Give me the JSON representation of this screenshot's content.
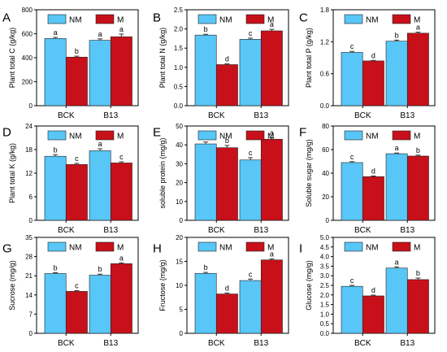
{
  "colors": {
    "NM": "#58C6F7",
    "M": "#C8101A",
    "axis": "#000000",
    "errorbar": "#333333"
  },
  "legend": {
    "nm_label": "NM",
    "m_label": "M"
  },
  "chart_data": [
    {
      "panel": "A",
      "type": "bar",
      "categories": [
        "BCK",
        "B13"
      ],
      "ylabel": "Plant total C (g/kg)",
      "ylim": [
        0,
        800
      ],
      "yticks": [
        0,
        200,
        400,
        600,
        800
      ],
      "series": [
        {
          "name": "NM",
          "values": [
            560,
            545
          ],
          "errors": [
            10,
            12
          ],
          "labels": [
            "a",
            "a"
          ]
        },
        {
          "name": "M",
          "values": [
            405,
            575
          ],
          "errors": [
            8,
            22
          ],
          "labels": [
            "b",
            "a"
          ]
        }
      ]
    },
    {
      "panel": "B",
      "type": "bar",
      "categories": [
        "BCK",
        "B13"
      ],
      "ylabel": "Plant total N (g/kg)",
      "ylim": [
        0,
        2.5
      ],
      "yticks": [
        0.0,
        0.5,
        1.0,
        1.5,
        2.0,
        2.5
      ],
      "series": [
        {
          "name": "NM",
          "values": [
            1.84,
            1.73
          ],
          "errors": [
            0.02,
            0.03
          ],
          "labels": [
            "b",
            "c"
          ]
        },
        {
          "name": "M",
          "values": [
            1.07,
            1.95
          ],
          "errors": [
            0.02,
            0.04
          ],
          "labels": [
            "d",
            "a"
          ]
        }
      ]
    },
    {
      "panel": "C",
      "type": "bar",
      "categories": [
        "BCK",
        "B13"
      ],
      "ylabel": "Plant total P (g/kg)",
      "ylim": [
        0,
        1.8
      ],
      "yticks": [
        0.0,
        0.6,
        1.2,
        1.8
      ],
      "series": [
        {
          "name": "NM",
          "values": [
            1.0,
            1.21
          ],
          "errors": [
            0.02,
            0.02
          ],
          "labels": [
            "c",
            "b"
          ]
        },
        {
          "name": "M",
          "values": [
            0.84,
            1.36
          ],
          "errors": [
            0.01,
            0.02
          ],
          "labels": [
            "d",
            "a"
          ]
        }
      ]
    },
    {
      "panel": "D",
      "type": "bar",
      "categories": [
        "BCK",
        "B13"
      ],
      "ylabel": "Plant total K (g/kg)",
      "ylim": [
        0,
        24
      ],
      "yticks": [
        0,
        6,
        12,
        18,
        24
      ],
      "series": [
        {
          "name": "NM",
          "values": [
            16.3,
            17.7
          ],
          "errors": [
            0.4,
            0.5
          ],
          "labels": [
            "b",
            "a"
          ]
        },
        {
          "name": "M",
          "values": [
            14.2,
            14.6
          ],
          "errors": [
            0.3,
            0.3
          ],
          "labels": [
            "c",
            "c"
          ]
        }
      ]
    },
    {
      "panel": "E",
      "type": "bar",
      "categories": [
        "BCK",
        "B13"
      ],
      "ylabel": "soluble protein (mg/g)",
      "ylim": [
        0,
        50
      ],
      "yticks": [
        0,
        10,
        20,
        30,
        40,
        50
      ],
      "series": [
        {
          "name": "NM",
          "values": [
            40.5,
            32
          ],
          "errors": [
            1.0,
            1.2
          ],
          "labels": [
            "ab",
            "c"
          ]
        },
        {
          "name": "M",
          "values": [
            38.5,
            43
          ],
          "errors": [
            1.2,
            0.8
          ],
          "labels": [
            "b",
            "a"
          ]
        }
      ]
    },
    {
      "panel": "F",
      "type": "bar",
      "categories": [
        "BCK",
        "B13"
      ],
      "ylabel": "Soluble sugar (mg/g)",
      "ylim": [
        0,
        80
      ],
      "yticks": [
        0,
        20,
        40,
        60,
        80
      ],
      "series": [
        {
          "name": "NM",
          "values": [
            49,
            56.5
          ],
          "errors": [
            0.8,
            0.6
          ],
          "labels": [
            "c",
            "a"
          ]
        },
        {
          "name": "M",
          "values": [
            37,
            54.5
          ],
          "errors": [
            0.6,
            0.8
          ],
          "labels": [
            "d",
            "b"
          ]
        }
      ]
    },
    {
      "panel": "G",
      "type": "bar",
      "categories": [
        "BCK",
        "B13"
      ],
      "ylabel": "Sucrose (mg/g)",
      "ylim": [
        0,
        35
      ],
      "yticks": [
        0,
        7,
        14,
        21,
        28,
        35
      ],
      "series": [
        {
          "name": "NM",
          "values": [
            21.8,
            21.2
          ],
          "errors": [
            0.3,
            0.4
          ],
          "labels": [
            "b",
            "b"
          ]
        },
        {
          "name": "M",
          "values": [
            15.3,
            25.4
          ],
          "errors": [
            0.3,
            0.3
          ],
          "labels": [
            "c",
            "a"
          ]
        }
      ]
    },
    {
      "panel": "H",
      "type": "bar",
      "categories": [
        "BCK",
        "B13"
      ],
      "ylabel": "Fructose (mg/g)",
      "ylim": [
        0,
        20
      ],
      "yticks": [
        0,
        5,
        10,
        15,
        20
      ],
      "series": [
        {
          "name": "NM",
          "values": [
            12.5,
            11
          ],
          "errors": [
            0.2,
            0.3
          ],
          "labels": [
            "b",
            "c"
          ]
        },
        {
          "name": "M",
          "values": [
            8.2,
            15.3
          ],
          "errors": [
            0.2,
            0.2
          ],
          "labels": [
            "d",
            "a"
          ]
        }
      ]
    },
    {
      "panel": "I",
      "type": "bar",
      "categories": [
        "BCK",
        "B13"
      ],
      "ylabel": "Glucose (mg/g)",
      "ylim": [
        0,
        5
      ],
      "yticks": [
        0.0,
        0.5,
        1.0,
        1.5,
        2.0,
        2.5,
        3.0,
        3.5,
        4.0,
        4.5,
        5.0
      ],
      "series": [
        {
          "name": "NM",
          "values": [
            2.45,
            3.4
          ],
          "errors": [
            0.05,
            0.06
          ],
          "labels": [
            "c",
            "a"
          ]
        },
        {
          "name": "M",
          "values": [
            1.95,
            2.8
          ],
          "errors": [
            0.04,
            0.08
          ],
          "labels": [
            "d",
            "b"
          ]
        }
      ]
    }
  ]
}
